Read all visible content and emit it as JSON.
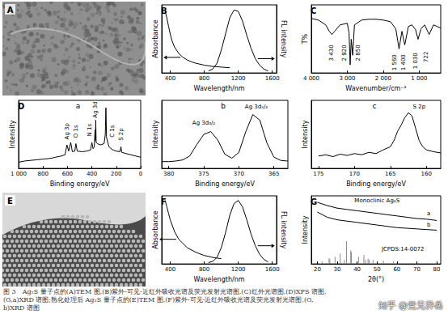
{
  "images": [
    {
      "label": "A"
    },
    {
      "label": "E"
    }
  ],
  "chart_data": [
    {
      "label": "B",
      "type": "line",
      "xlabel": "Wavelength/nm",
      "ylabel": "Absorbance",
      "y2label": "FL intensity",
      "xlim": [
        300,
        1650
      ],
      "xticks": [
        400,
        800,
        1200,
        1600
      ],
      "ylim": [
        0,
        1.05
      ],
      "y2lim": [
        0,
        1.05
      ],
      "tick_labels": "x",
      "series": [
        {
          "x": [
            340,
            360,
            380,
            400,
            420,
            450,
            500,
            550,
            600,
            650,
            700,
            800,
            900,
            1000,
            1100
          ],
          "values": [
            0.95,
            0.85,
            0.72,
            0.6,
            0.5,
            0.4,
            0.3,
            0.24,
            0.2,
            0.17,
            0.15,
            0.12,
            0.1,
            0.09,
            0.08
          ],
          "color": "#000000"
        },
        {
          "x": [
            850,
            900,
            950,
            1000,
            1050,
            1100,
            1150,
            1200,
            1250,
            1300,
            1350,
            1400,
            1450,
            1500,
            1550
          ],
          "values": [
            0.03,
            0.06,
            0.15,
            0.35,
            0.6,
            0.85,
            0.97,
            0.95,
            0.8,
            0.58,
            0.38,
            0.22,
            0.12,
            0.06,
            0.03
          ],
          "color": "#000000",
          "axis": "y2"
        }
      ]
    },
    {
      "label": "C",
      "type": "line",
      "xlabel": "Wavenumber/cm⁻¹",
      "ylabel": "T%",
      "xlim": [
        4000,
        400
      ],
      "xticks": [
        {
          "value": 4000,
          "label": "4 000"
        },
        {
          "value": 3000,
          "label": "3 000"
        },
        {
          "value": 2000,
          "label": "2 000"
        },
        {
          "value": 1000,
          "label": "1 000"
        }
      ],
      "ylim": [
        0.2,
        1.05
      ],
      "tick_labels": "x",
      "series": [
        {
          "x": [
            4000,
            3800,
            3600,
            3500,
            3430,
            3350,
            3200,
            3000,
            2950,
            2920,
            2890,
            2850,
            2800,
            2600,
            2400,
            2200,
            2000,
            1800,
            1650,
            1560,
            1480,
            1400,
            1300,
            1200,
            1100,
            1030,
            950,
            850,
            722,
            600,
            500,
            400
          ],
          "values": [
            0.88,
            0.86,
            0.8,
            0.72,
            0.68,
            0.72,
            0.8,
            0.82,
            0.7,
            0.3,
            0.62,
            0.42,
            0.8,
            0.86,
            0.87,
            0.87,
            0.86,
            0.84,
            0.75,
            0.5,
            0.72,
            0.55,
            0.78,
            0.8,
            0.74,
            0.62,
            0.75,
            0.8,
            0.68,
            0.8,
            0.78,
            0.76
          ],
          "color": "#000000"
        }
      ],
      "annotations": [
        {
          "text": "3 430",
          "x": 3430,
          "y": 0.45
        },
        {
          "text": "2 920",
          "x": 3080,
          "y": 0.45
        },
        {
          "text": "2 850",
          "x": 2700,
          "y": 0.45
        },
        {
          "text": "1 560",
          "x": 1680,
          "y": 0.33
        },
        {
          "text": "1 400",
          "x": 1430,
          "y": 0.33
        },
        {
          "text": "1 030",
          "x": 1100,
          "y": 0.35
        },
        {
          "text": "722",
          "x": 800,
          "y": 0.4
        }
      ]
    },
    {
      "label": "D",
      "sublabel": "a",
      "type": "line",
      "xlabel": "Binding energy/eV",
      "ylabel": "Intensity",
      "xlim": [
        1000,
        0
      ],
      "xticks": [
        {
          "value": 1000,
          "label": "1 000"
        },
        800,
        600,
        400,
        200,
        0
      ],
      "ylim": [
        0,
        1.1
      ],
      "tick_labels": "x",
      "series": [
        {
          "x": [
            1000,
            950,
            900,
            850,
            800,
            750,
            720,
            700,
            650,
            620,
            604,
            590,
            573,
            560,
            540,
            531,
            520,
            480,
            440,
            410,
            400,
            390,
            380,
            374,
            371,
            368,
            365,
            355,
            330,
            300,
            290,
            285,
            280,
            260,
            230,
            200,
            170,
            162,
            155,
            120,
            80,
            40,
            0
          ],
          "values": [
            0.1,
            0.12,
            0.13,
            0.14,
            0.15,
            0.16,
            0.17,
            0.18,
            0.2,
            0.22,
            0.38,
            0.28,
            0.42,
            0.27,
            0.28,
            0.4,
            0.28,
            0.27,
            0.28,
            0.3,
            0.42,
            0.32,
            0.35,
            0.62,
            0.45,
            0.78,
            0.42,
            0.4,
            0.38,
            0.4,
            0.55,
            0.98,
            0.5,
            0.35,
            0.3,
            0.28,
            0.27,
            0.35,
            0.26,
            0.24,
            0.22,
            0.2,
            0.18
          ],
          "color": "#000000"
        }
      ],
      "annotations": [
        {
          "text": "Ag 3p",
          "x": 600,
          "y": 0.6
        },
        {
          "text": "O 1s",
          "x": 531,
          "y": 0.6
        },
        {
          "text": "N 1s",
          "x": 420,
          "y": 0.62
        },
        {
          "text": "Ag 3d",
          "x": 368,
          "y": 0.95
        },
        {
          "text": "C 1s",
          "x": 230,
          "y": 0.6
        },
        {
          "text": "S 2p",
          "x": 162,
          "y": 0.55
        }
      ]
    },
    {
      "sublabel": "b",
      "type": "line",
      "xlabel": "Binding energy/eV",
      "ylabel": "Intensity",
      "xlim": [
        381,
        363
      ],
      "xticks": [
        380,
        375,
        370,
        365
      ],
      "ylim": [
        0,
        1.2
      ],
      "tick_labels": "x",
      "series": [
        {
          "x": [
            381,
            380,
            379,
            378,
            377,
            376,
            375,
            374,
            373,
            372,
            371,
            370,
            369,
            368,
            367,
            366,
            365,
            364,
            363
          ],
          "values": [
            0.12,
            0.12,
            0.13,
            0.15,
            0.22,
            0.42,
            0.6,
            0.65,
            0.5,
            0.25,
            0.18,
            0.28,
            0.65,
            0.95,
            0.85,
            0.45,
            0.2,
            0.14,
            0.13
          ],
          "color": "#000000"
        }
      ],
      "annotations": [
        {
          "text": "Ag 3d₃/₂",
          "x": 375,
          "y": 0.8
        },
        {
          "text": "Ag 3d₅/₂",
          "x": 367.5,
          "y": 1.08
        }
      ]
    },
    {
      "sublabel": "c",
      "type": "line",
      "xlabel": "Binding energy/eV",
      "ylabel": "Intensity",
      "xlim": [
        176,
        158
      ],
      "xticks": [
        175,
        170,
        165,
        160
      ],
      "ylim": [
        0,
        1.1
      ],
      "tick_labels": "x",
      "series": [
        {
          "x": [
            175,
            174,
            173,
            172,
            171,
            170,
            169,
            168,
            167,
            166,
            165,
            164.5,
            164,
            163.5,
            163,
            162.5,
            162,
            161.5,
            161,
            160.5,
            160,
            159,
            158
          ],
          "values": [
            0.2,
            0.22,
            0.19,
            0.23,
            0.21,
            0.24,
            0.22,
            0.26,
            0.24,
            0.3,
            0.35,
            0.45,
            0.6,
            0.7,
            0.82,
            0.9,
            0.85,
            0.65,
            0.45,
            0.35,
            0.3,
            0.27,
            0.25
          ],
          "color": "#000000"
        }
      ],
      "annotations": [
        {
          "text": "S 2p",
          "x": 161,
          "y": 1.0
        }
      ]
    },
    {
      "label": "F",
      "type": "line",
      "xlabel": "Wavelength/nm",
      "ylabel": "Absorbance",
      "y2label": "FL intensity",
      "xlim": [
        300,
        1650
      ],
      "xticks": [
        400,
        800,
        1200,
        1600
      ],
      "ylim": [
        0,
        1.05
      ],
      "y2lim": [
        0,
        1.05
      ],
      "tick_labels": "x",
      "series": [
        {
          "x": [
            340,
            360,
            380,
            400,
            450,
            500,
            600,
            700,
            800,
            900,
            1000
          ],
          "values": [
            0.98,
            0.88,
            0.78,
            0.68,
            0.5,
            0.38,
            0.25,
            0.18,
            0.13,
            0.1,
            0.08
          ],
          "color": "#000000"
        },
        {
          "x": [
            850,
            900,
            950,
            1000,
            1050,
            1100,
            1150,
            1200,
            1250,
            1300,
            1350,
            1400,
            1450,
            1500,
            1550
          ],
          "values": [
            0.02,
            0.04,
            0.1,
            0.25,
            0.48,
            0.75,
            0.93,
            0.98,
            0.88,
            0.68,
            0.46,
            0.28,
            0.15,
            0.07,
            0.03
          ],
          "color": "#000000",
          "axis": "y2"
        }
      ]
    },
    {
      "label": "G",
      "type": "line",
      "xlabel": "2θ(°)",
      "ylabel": "Intensity",
      "xlim": [
        17,
        82
      ],
      "xticks": [
        20,
        30,
        40,
        50,
        60,
        70,
        80
      ],
      "ylim": [
        0,
        1.05
      ],
      "tick_labels": "x",
      "series": [
        {
          "x": [
            20,
            25,
            30,
            35,
            40,
            45,
            50,
            55,
            60,
            65,
            70,
            75,
            80
          ],
          "values": [
            0.95,
            0.9,
            0.86,
            0.84,
            0.82,
            0.8,
            0.78,
            0.76,
            0.74,
            0.72,
            0.7,
            0.69,
            0.67
          ],
          "color": "#000000"
        },
        {
          "x": [
            20,
            25,
            30,
            35,
            40,
            45,
            50,
            55,
            60,
            65,
            70,
            75,
            80
          ],
          "values": [
            0.8,
            0.72,
            0.68,
            0.66,
            0.64,
            0.62,
            0.6,
            0.58,
            0.56,
            0.55,
            0.54,
            0.53,
            0.52
          ],
          "color": "#000000"
        },
        {
          "type": "bar",
          "x": [
            22.4,
            25.9,
            26.3,
            28.9,
            31.5,
            33.6,
            34.7,
            36.8,
            37.1,
            40.7,
            43.4,
            44.3,
            45.5,
            46.2,
            48.0,
            53.2,
            58.2
          ],
          "values": [
            0.04,
            0.09,
            0.07,
            0.11,
            0.16,
            0.06,
            0.35,
            0.21,
            0.18,
            0.11,
            0.14,
            0.06,
            0.08,
            0.06,
            0.06,
            0.05,
            0.04
          ],
          "color": "#888888"
        }
      ],
      "annotations": [
        {
          "text": "Monoclinic Ag₂S",
          "x": 50,
          "y": 0.97
        },
        {
          "text": "a",
          "x": 76,
          "y": 0.78
        },
        {
          "text": "b",
          "x": 76,
          "y": 0.6
        },
        {
          "text": "JCPDS:14-0072",
          "x": 63,
          "y": 0.22
        }
      ]
    }
  ],
  "caption": [
    "图 3　Ag₂S 量子点的(A)TEM 图,(B)紫外-可见-近红外吸收光谱及荧光发射光谱图,(C)红外光谱图,(D)XPS 谱图,",
    "(G,a)XRD 谱图;熟化处理后 Ag₂S 量子点的(E)TEM 图,(F)紫外-可见-近红外吸收光谱及荧光发射光谱图,(G,",
    "b)XRD 谱图"
  ],
  "watermark": "知乎 @党兄乔岳"
}
